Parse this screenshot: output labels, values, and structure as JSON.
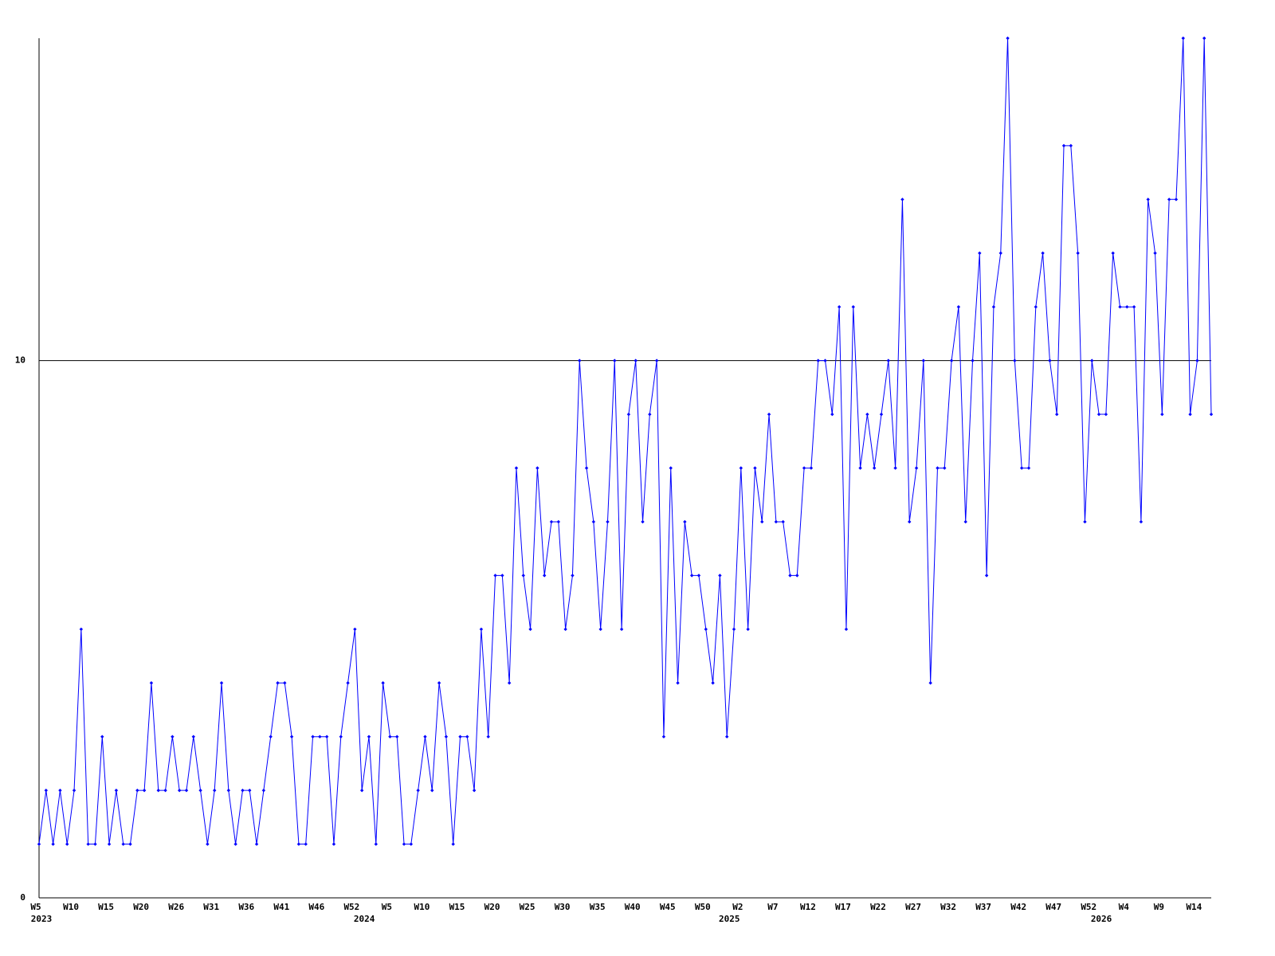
{
  "chart_data": {
    "type": "line",
    "categories": [
      "W5",
      null,
      null,
      null,
      null,
      "W10",
      null,
      null,
      null,
      null,
      "W15",
      null,
      null,
      null,
      null,
      "W20",
      null,
      null,
      null,
      null,
      "W26",
      null,
      null,
      null,
      null,
      "W31",
      null,
      null,
      null,
      null,
      "W36",
      null,
      null,
      null,
      null,
      "W41",
      null,
      null,
      null,
      null,
      "W46",
      null,
      null,
      null,
      null,
      "W52",
      null,
      null,
      null,
      null,
      "W5",
      null,
      null,
      null,
      null,
      "W10",
      null,
      null,
      null,
      null,
      "W15",
      null,
      null,
      null,
      null,
      "W20",
      null,
      null,
      null,
      null,
      "W25",
      null,
      null,
      null,
      null,
      "W30",
      null,
      null,
      null,
      null,
      "W35",
      null,
      null,
      null,
      null,
      "W40",
      null,
      null,
      null,
      null,
      "W45",
      null,
      null,
      null,
      null,
      "W50",
      null,
      null,
      null,
      null,
      "W2",
      null,
      null,
      null,
      null,
      "W7",
      null,
      null,
      null,
      null,
      "W12",
      null,
      null,
      null,
      null,
      "W17",
      null,
      null,
      null,
      null,
      "W22",
      null,
      null,
      null,
      null,
      "W27",
      null,
      null,
      null,
      null,
      "W32",
      null,
      null,
      null,
      null,
      "W37",
      null,
      null,
      null,
      null,
      "W42",
      null,
      null,
      null,
      null,
      "W47",
      null,
      null,
      null,
      null,
      "W52",
      null,
      null,
      null,
      null,
      "W4",
      null,
      null,
      null,
      null,
      "W9",
      null,
      null,
      null,
      null,
      "W14",
      null,
      null
    ],
    "x_groups": [
      {
        "label": "2023",
        "start": 0
      },
      {
        "label": "2024",
        "start": 46
      },
      {
        "label": "2025",
        "start": 98
      },
      {
        "label": "2026",
        "start": 151
      }
    ],
    "values": [
      1,
      2,
      1,
      2,
      1,
      2,
      5,
      1,
      1,
      3,
      1,
      2,
      1,
      1,
      2,
      2,
      4,
      2,
      2,
      3,
      2,
      2,
      3,
      2,
      1,
      2,
      4,
      2,
      1,
      2,
      2,
      1,
      2,
      3,
      4,
      4,
      3,
      1,
      1,
      3,
      3,
      3,
      1,
      3,
      4,
      5,
      2,
      3,
      1,
      4,
      3,
      3,
      1,
      1,
      2,
      3,
      2,
      4,
      3,
      1,
      3,
      3,
      2,
      5,
      3,
      6,
      6,
      4,
      8,
      6,
      5,
      8,
      6,
      7,
      7,
      5,
      6,
      10,
      8,
      7,
      5,
      7,
      10,
      5,
      9,
      10,
      7,
      9,
      10,
      3,
      8,
      4,
      7,
      6,
      6,
      5,
      4,
      6,
      3,
      5,
      8,
      5,
      8,
      7,
      9,
      7,
      7,
      6,
      6,
      8,
      8,
      10,
      10,
      9,
      11,
      5,
      11,
      8,
      9,
      8,
      9,
      10,
      8,
      13,
      7,
      8,
      10,
      4,
      8,
      8,
      10,
      11,
      7,
      10,
      12,
      6,
      11,
      12,
      16,
      10,
      8,
      8,
      11,
      12,
      10,
      9,
      14,
      14,
      12,
      7,
      10,
      9,
      9,
      12,
      11,
      11,
      11,
      7,
      13,
      12,
      9,
      13,
      13,
      16,
      9,
      10,
      16,
      9
    ],
    "color": "#0000ff",
    "ylim": [
      0,
      16
    ],
    "yticks": [
      0,
      10
    ],
    "grid": true
  }
}
